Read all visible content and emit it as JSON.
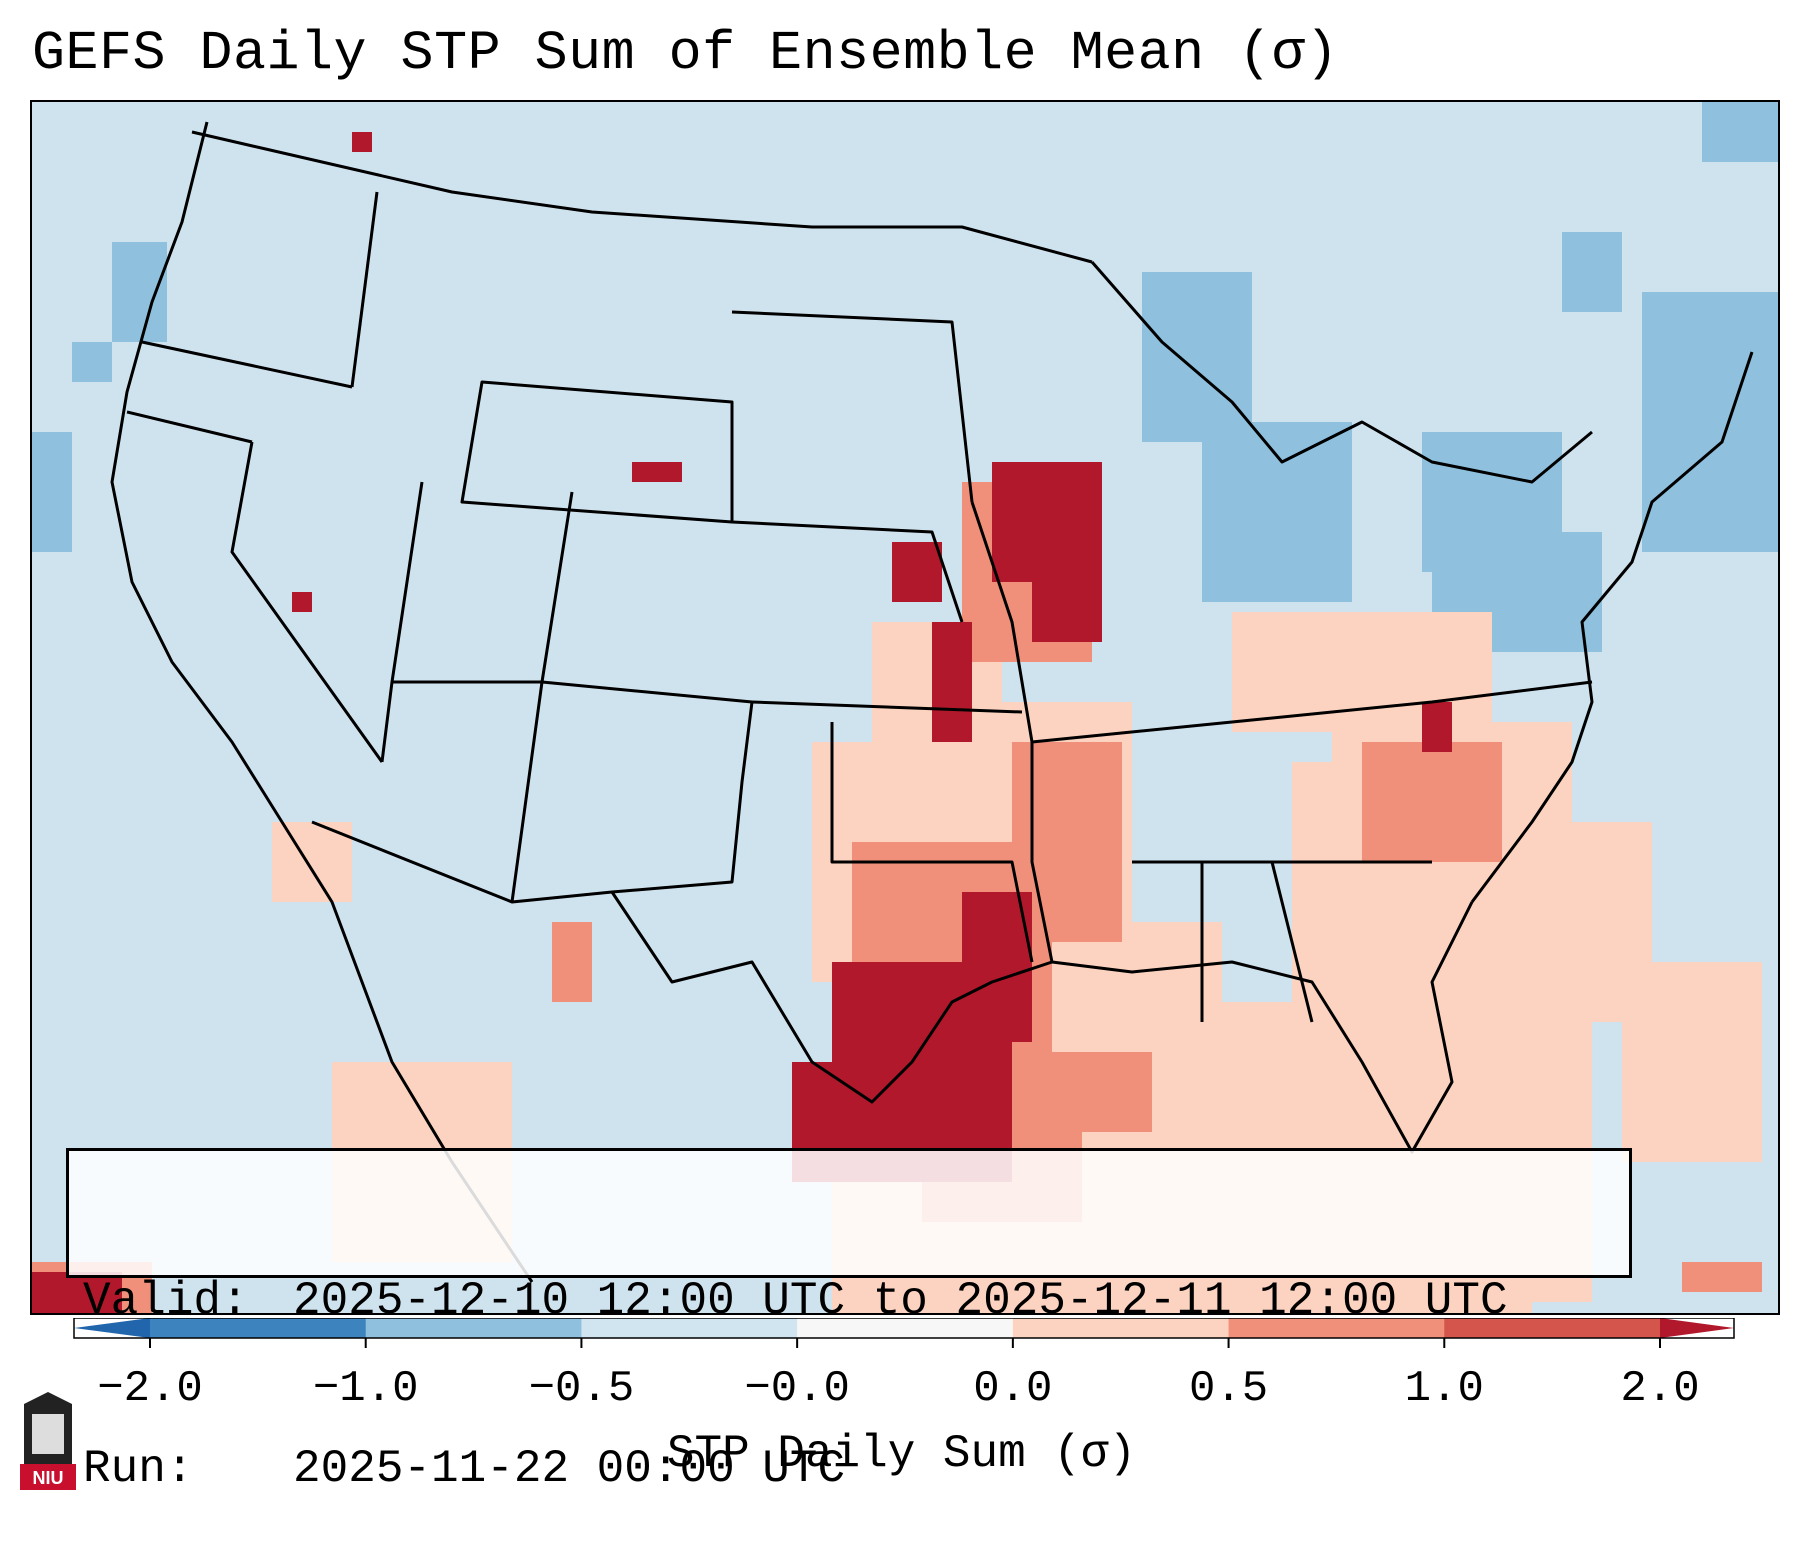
{
  "title": "GEFS Daily STP Sum of Ensemble Mean (σ)",
  "info": {
    "valid_label": "Valid:",
    "valid_value": "2025-12-10 12:00 UTC to 2025-12-11 12:00 UTC",
    "run_label": "Run:",
    "run_value": "2025-11-22 00:00 UTC"
  },
  "colorbar": {
    "label": "STP Daily Sum (σ)",
    "ticks": [
      "−2.0",
      "−1.0",
      "−0.5",
      "−0.0",
      "0.0",
      "0.5",
      "1.0",
      "2.0"
    ],
    "colors": [
      "#3d84bf",
      "#8fc1de",
      "#d1e5f0",
      "#f7f7f7",
      "#fbd3c0",
      "#f0907a",
      "#d3554c"
    ],
    "under_color": "#2166ac",
    "over_color": "#b2182b"
  },
  "map_colors": {
    "background": "#cfe3ef",
    "light_pos": "#fbd3c0",
    "mid_pos": "#f0907a",
    "high_pos": "#d3554c",
    "max_pos": "#b2182b",
    "neg": "#8fc1de"
  },
  "logo": {
    "text": "NIU",
    "color": "#c8102e"
  }
}
